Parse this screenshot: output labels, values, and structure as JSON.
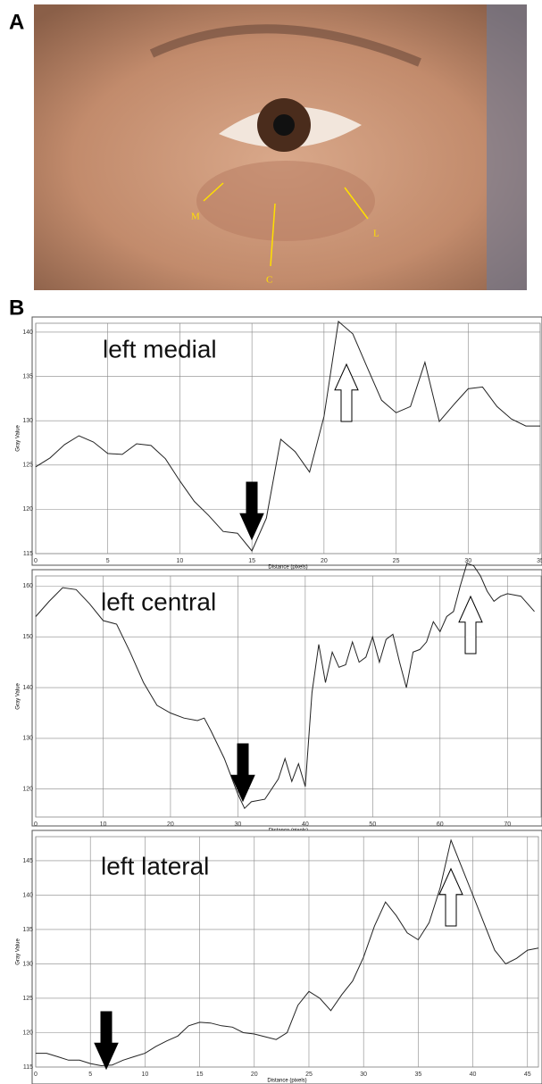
{
  "panels": [
    "A",
    "B"
  ],
  "photo": {
    "labels": [
      "M",
      "C",
      "L"
    ]
  },
  "chart_data": [
    {
      "type": "line",
      "title": "left medial",
      "x_label": "Distance (pixels)",
      "y_label": "Gray Value",
      "grid": true,
      "xlim": [
        0,
        35
      ],
      "ylim": [
        115,
        141
      ],
      "xticks": [
        0,
        5,
        10,
        15,
        20,
        25,
        30,
        35
      ],
      "yticks": [
        115,
        120,
        125,
        130,
        135,
        140
      ],
      "x": [
        0,
        1,
        2,
        3,
        4,
        5,
        6,
        7,
        8,
        9,
        10,
        11,
        12,
        13,
        14,
        15,
        16,
        17,
        18,
        19,
        20,
        21,
        22,
        23,
        24,
        25,
        26,
        27,
        28,
        29,
        30,
        31,
        32,
        33,
        34,
        35
      ],
      "series": [
        {
          "color": "#222222",
          "values": [
            124.8,
            125.8,
            127.3,
            128.3,
            127.6,
            126.3,
            126.2,
            127.4,
            127.2,
            125.7,
            123.2,
            120.9,
            119.3,
            117.5,
            117.3,
            115.3,
            119,
            127.9,
            126.5,
            124.2,
            130.5,
            141.2,
            139.8,
            136,
            132.3,
            130.9,
            131.6,
            136.6,
            129.9,
            131.8,
            133.6,
            133.8,
            131.6,
            130.2,
            129.4,
            129.4
          ]
        }
      ]
    },
    {
      "type": "line",
      "title": "left central",
      "x_label": "Distance (pixels)",
      "y_label": "Gray Value",
      "grid": true,
      "xlim": [
        0,
        75
      ],
      "ylim": [
        114.5,
        162
      ],
      "xticks": [
        0,
        10,
        20,
        30,
        40,
        50,
        60,
        70
      ],
      "yticks": [
        120,
        130,
        140,
        150,
        160
      ],
      "x": [
        0,
        2,
        4,
        6,
        8,
        10,
        12,
        14,
        16,
        18,
        20,
        22,
        24,
        25,
        26,
        28,
        30,
        31,
        32,
        34,
        36,
        37,
        38,
        39,
        40,
        41,
        42,
        43,
        44,
        45,
        46,
        47,
        48,
        49,
        50,
        51,
        52,
        53,
        54,
        55,
        56,
        57,
        58,
        59,
        60,
        61,
        62,
        63,
        64,
        65,
        66,
        67,
        68,
        69,
        70,
        72,
        74
      ],
      "series": [
        {
          "color": "#222222",
          "values": [
            154,
            157,
            159.7,
            159.3,
            156.5,
            153.2,
            152.5,
            147,
            141,
            136.5,
            135,
            134,
            133.5,
            134,
            131.5,
            126,
            119,
            116.2,
            117.5,
            118,
            122,
            126,
            121.5,
            125,
            120.5,
            139,
            148.5,
            141,
            147,
            144,
            144.5,
            149,
            145,
            146,
            150,
            145,
            149.5,
            150.5,
            145,
            140,
            147,
            147.5,
            149,
            153,
            151,
            154,
            155,
            160,
            164.5,
            164,
            162,
            159,
            157,
            158,
            158.5,
            158,
            155
          ]
        }
      ]
    },
    {
      "type": "line",
      "title": "left lateral",
      "x_label": "Distance (pixels)",
      "y_label": "Gray Value",
      "grid": true,
      "xlim": [
        0,
        46
      ],
      "ylim": [
        115,
        148.5
      ],
      "xticks": [
        0,
        5,
        10,
        15,
        20,
        25,
        30,
        35,
        40,
        45
      ],
      "yticks": [
        115,
        120,
        125,
        130,
        135,
        140,
        145
      ],
      "x": [
        0,
        1,
        2,
        3,
        4,
        5,
        6,
        7,
        8,
        9,
        10,
        11,
        12,
        13,
        14,
        15,
        16,
        17,
        18,
        19,
        20,
        21,
        22,
        23,
        24,
        25,
        26,
        27,
        28,
        29,
        30,
        31,
        32,
        33,
        34,
        35,
        36,
        37,
        38,
        39,
        40,
        41,
        42,
        43,
        44,
        45,
        46
      ],
      "series": [
        {
          "color": "#222222",
          "values": [
            117,
            117,
            116.5,
            116,
            116,
            115.5,
            115.2,
            115.3,
            116,
            116.5,
            117,
            118,
            118.8,
            119.5,
            121,
            121.5,
            121.4,
            121,
            120.8,
            120,
            119.8,
            119.4,
            119,
            120,
            124,
            126,
            125,
            123.2,
            125.5,
            127.5,
            131,
            135.5,
            139,
            137,
            134.5,
            133.5,
            136,
            141,
            148,
            144,
            140,
            136,
            132,
            130,
            130.8,
            132,
            132.3
          ]
        }
      ]
    }
  ]
}
